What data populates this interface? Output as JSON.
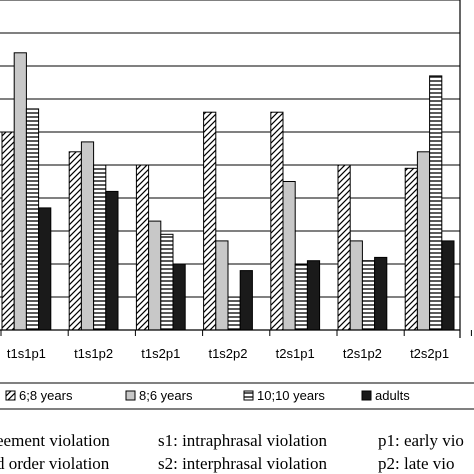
{
  "chart_data": {
    "type": "bar",
    "categories": [
      "t1s1p1",
      "t1s1p2",
      "t1s2p1",
      "t1s2p2",
      "t2s1p1",
      "t2s1p2",
      "t2s2p1"
    ],
    "series": [
      {
        "name": "6;8 years",
        "values": [
          60,
          54,
          50,
          66,
          66,
          50,
          49
        ],
        "pattern": "diagonal"
      },
      {
        "name": "8;6 years",
        "values": [
          84,
          57,
          33,
          27,
          45,
          27,
          54
        ],
        "pattern": "gray"
      },
      {
        "name": "10;10 years",
        "values": [
          67,
          50,
          29,
          10,
          20,
          21,
          77
        ],
        "pattern": "horizontal"
      },
      {
        "name": "adults",
        "values": [
          37,
          42,
          20,
          18,
          21,
          22,
          27
        ],
        "pattern": "black"
      }
    ],
    "ylim": [
      0,
      100
    ],
    "gridlines": [
      10,
      20,
      30,
      40,
      50,
      60,
      70,
      80,
      90,
      100
    ],
    "legend": {
      "placement": "bottom"
    },
    "footnotes": [
      [
        "eement violation",
        "s1: intraphrasal violation",
        "p1: early vio"
      ],
      [
        "d order violation",
        "s2: interphrasal violation",
        "p2: late vio"
      ]
    ],
    "colors": {
      "gray": "#c8c8c8",
      "black": "#1a1a1a",
      "grid": "#000000",
      "axis": "#000000"
    }
  }
}
